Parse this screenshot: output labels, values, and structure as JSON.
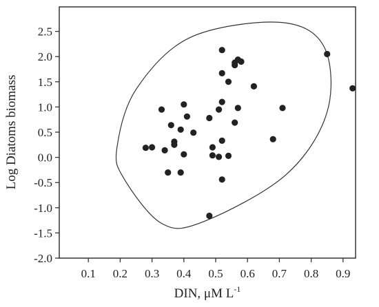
{
  "chart_data": {
    "type": "scatter",
    "title": "",
    "xlabel": "DIN, μM L",
    "xlabel_superscript": "-1",
    "ylabel": "Log Diatoms biomass",
    "xlim": [
      0.0,
      1.0
    ],
    "ylim": [
      -2.0,
      3.0
    ],
    "xticks": [
      0.1,
      0.2,
      0.3,
      0.4,
      0.5,
      0.6,
      0.7,
      0.8,
      0.9
    ],
    "xtick_labels": [
      "0.1",
      "0.2",
      "0.3",
      "0.4",
      "0.5",
      "0.6",
      "0.7",
      "0.8",
      "0.9"
    ],
    "yticks": [
      -2.0,
      -1.5,
      -1.0,
      -0.5,
      0.0,
      0.5,
      1.0,
      1.5,
      2.0,
      2.5
    ],
    "ytick_labels": [
      "-2.0",
      "-1.5",
      "-1.0",
      "-0.5",
      "0.0",
      "0.5",
      "1.0",
      "1.5",
      "2.0",
      "2.5"
    ],
    "grid": false,
    "point_color": "#222222",
    "series": [
      {
        "points": [
          {
            "x": 0.28,
            "y": 0.19
          },
          {
            "x": 0.3,
            "y": 0.2
          },
          {
            "x": 0.33,
            "y": 0.95
          },
          {
            "x": 0.34,
            "y": 0.14
          },
          {
            "x": 0.35,
            "y": -0.3
          },
          {
            "x": 0.36,
            "y": 0.64
          },
          {
            "x": 0.37,
            "y": 0.25
          },
          {
            "x": 0.37,
            "y": 0.31
          },
          {
            "x": 0.39,
            "y": 0.55
          },
          {
            "x": 0.39,
            "y": -0.3
          },
          {
            "x": 0.4,
            "y": 1.05
          },
          {
            "x": 0.4,
            "y": 0.06
          },
          {
            "x": 0.41,
            "y": 0.81
          },
          {
            "x": 0.43,
            "y": 0.49
          },
          {
            "x": 0.48,
            "y": 0.78
          },
          {
            "x": 0.48,
            "y": -1.16
          },
          {
            "x": 0.49,
            "y": 0.2
          },
          {
            "x": 0.49,
            "y": 0.04
          },
          {
            "x": 0.51,
            "y": 0.95
          },
          {
            "x": 0.51,
            "y": 0.01
          },
          {
            "x": 0.52,
            "y": 2.13
          },
          {
            "x": 0.52,
            "y": 1.67
          },
          {
            "x": 0.52,
            "y": 1.1
          },
          {
            "x": 0.52,
            "y": 0.33
          },
          {
            "x": 0.52,
            "y": -0.44
          },
          {
            "x": 0.54,
            "y": 1.5
          },
          {
            "x": 0.54,
            "y": 0.03
          },
          {
            "x": 0.56,
            "y": 1.88
          },
          {
            "x": 0.56,
            "y": 1.83
          },
          {
            "x": 0.56,
            "y": 0.69
          },
          {
            "x": 0.57,
            "y": 1.94
          },
          {
            "x": 0.57,
            "y": 0.98
          },
          {
            "x": 0.58,
            "y": 1.9
          },
          {
            "x": 0.62,
            "y": 1.41
          },
          {
            "x": 0.68,
            "y": 0.36
          },
          {
            "x": 0.71,
            "y": 0.98
          },
          {
            "x": 0.85,
            "y": 2.05
          },
          {
            "x": 0.93,
            "y": 1.37
          }
        ]
      }
    ],
    "ellipse": {
      "center": [
        0.525,
        0.41
      ],
      "points": [
        [
          0.84,
          2.2
        ],
        [
          0.7,
          2.68
        ],
        [
          0.42,
          2.38
        ],
        [
          0.25,
          1.35
        ],
        [
          0.19,
          0.2
        ],
        [
          0.21,
          -0.4
        ],
        [
          0.33,
          -1.31
        ],
        [
          0.46,
          -1.28
        ],
        [
          0.72,
          -0.35
        ],
        [
          0.85,
          0.9
        ]
      ]
    }
  }
}
